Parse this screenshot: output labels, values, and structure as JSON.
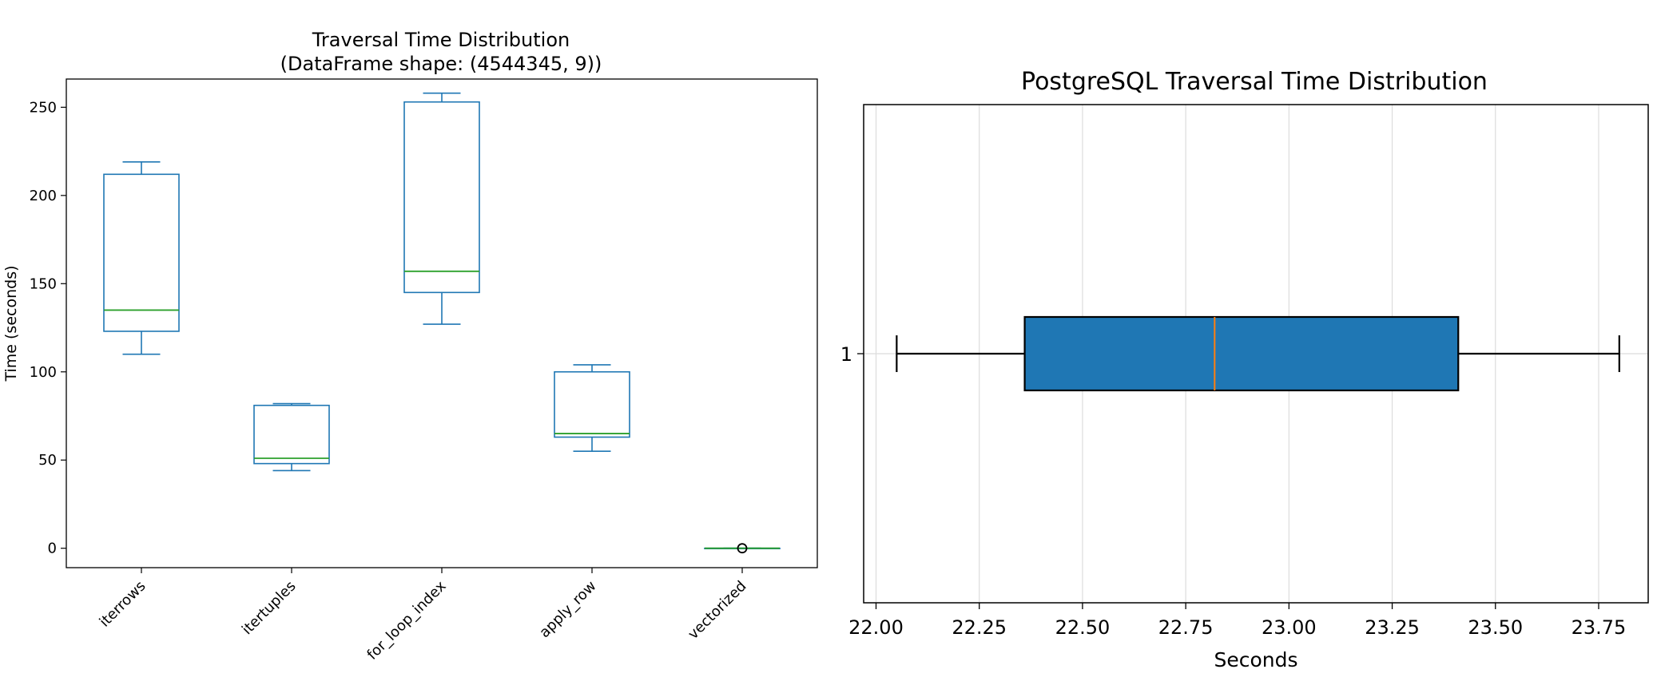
{
  "chart_data": [
    {
      "type": "box",
      "title": "Traversal Time Distribution",
      "subtitle": "(DataFrame shape: (4544345, 9))",
      "xlabel": "",
      "ylabel": "Time (seconds)",
      "orientation": "vertical",
      "ylim": [
        -11,
        266
      ],
      "yticks": [
        0,
        50,
        100,
        150,
        200,
        250
      ],
      "grid": false,
      "box_color": "#1f77b4",
      "median_color": "#2ca02c",
      "categories": [
        "iterrows",
        "itertuples",
        "for_loop_index",
        "apply_row",
        "vectorized"
      ],
      "boxes": [
        {
          "whisker_low": 110,
          "q1": 123,
          "median": 135,
          "q3": 212,
          "whisker_high": 219,
          "outliers": []
        },
        {
          "whisker_low": 44,
          "q1": 48,
          "median": 51,
          "q3": 81,
          "whisker_high": 82,
          "outliers": []
        },
        {
          "whisker_low": 127,
          "q1": 145,
          "median": 157,
          "q3": 253,
          "whisker_high": 258,
          "outliers": []
        },
        {
          "whisker_low": 55,
          "q1": 63,
          "median": 65,
          "q3": 100,
          "whisker_high": 104,
          "outliers": []
        },
        {
          "whisker_low": 0,
          "q1": 0,
          "median": 0,
          "q3": 0,
          "whisker_high": 0,
          "outliers": [
            0
          ]
        }
      ]
    },
    {
      "type": "box",
      "title": "PostgreSQL Traversal Time Distribution",
      "xlabel": "Seconds",
      "ylabel": "",
      "orientation": "horizontal",
      "xlim": [
        21.97,
        23.87
      ],
      "xticks": [
        "22.00",
        "22.25",
        "22.50",
        "22.75",
        "23.00",
        "23.25",
        "23.50",
        "23.75"
      ],
      "ytick_labels": [
        "1"
      ],
      "grid": true,
      "box_fill": "#1f77b4",
      "median_color": "#ff7f0e",
      "boxes": [
        {
          "label": "1",
          "whisker_low": 22.05,
          "q1": 22.36,
          "median": 22.82,
          "q3": 23.41,
          "whisker_high": 23.8
        }
      ]
    }
  ]
}
